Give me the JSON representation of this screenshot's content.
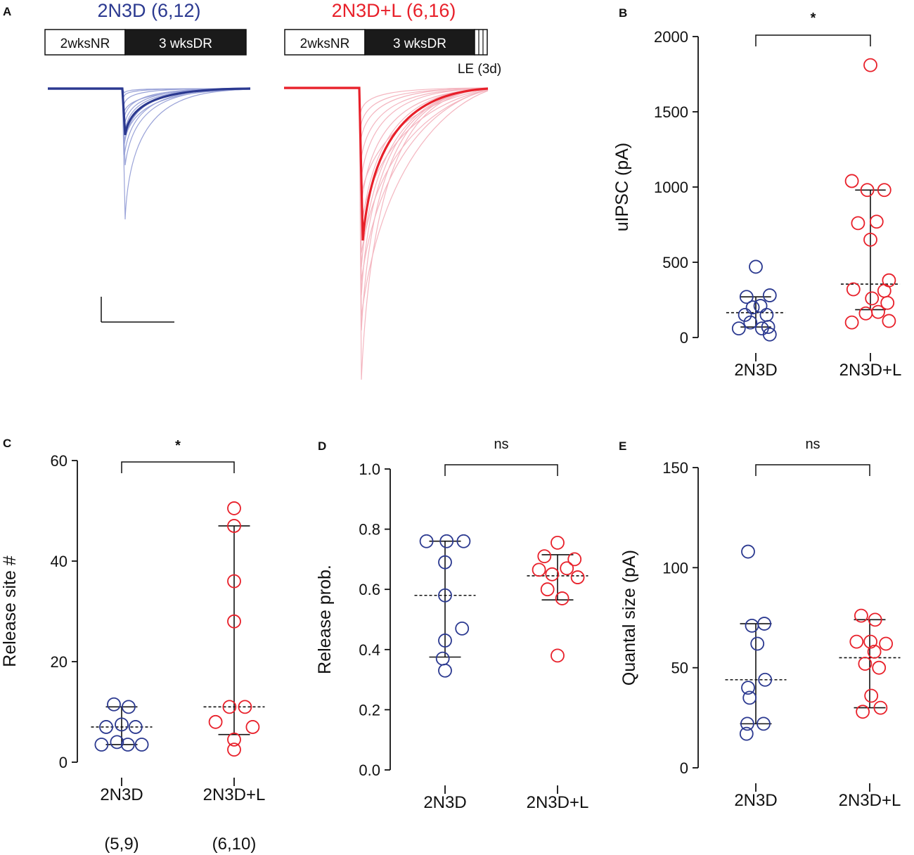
{
  "colors": {
    "blue": "#2b3990",
    "red": "#e8202a",
    "blue_light": "#9aa3d8",
    "red_light": "#f4b6c0",
    "black": "#111111"
  },
  "panelA": {
    "letter": "A",
    "left": {
      "title": "2N3D (6,12)",
      "timeline": [
        "2wksNR",
        "3 wksDR"
      ]
    },
    "right": {
      "title": "2N3D+L (6,16)",
      "timeline": [
        "2wksNR",
        "3 wksDR"
      ],
      "le_label": "LE (3d)"
    }
  },
  "chart_data": [
    {
      "id": "B",
      "letter": "B",
      "type": "scatter",
      "ylabel": "uIPSC (pA)",
      "ylim": [
        0,
        2000
      ],
      "yticks": [
        0,
        500,
        1000,
        1500,
        2000
      ],
      "categories": [
        "2N3D",
        "2N3D+L"
      ],
      "significance": "*",
      "series": [
        {
          "name": "2N3D",
          "color": "blue",
          "median": 165,
          "q1": 70,
          "q3": 270,
          "values": [
            470,
            270,
            280,
            200,
            210,
            150,
            150,
            100,
            60,
            60,
            70,
            20
          ],
          "offsets": [
            0,
            -0.6,
            0.9,
            -0.2,
            0.3,
            -0.7,
            0.7,
            -0.35,
            -1.1,
            0.4,
            0.8,
            0.9
          ]
        },
        {
          "name": "2N3D+L",
          "color": "red",
          "median": 355,
          "q1": 185,
          "q3": 980,
          "values": [
            1810,
            1040,
            980,
            980,
            770,
            760,
            650,
            380,
            320,
            260,
            310,
            230,
            160,
            170,
            100,
            110
          ],
          "offsets": [
            0,
            -1.2,
            -0.2,
            0.9,
            0.4,
            -0.8,
            0,
            1.2,
            -1.1,
            0.1,
            0.9,
            1.1,
            -0.3,
            0.5,
            -1.2,
            1.2
          ]
        }
      ]
    },
    {
      "id": "C",
      "letter": "C",
      "type": "scatter",
      "ylabel": "Release site #",
      "ylim": [
        0,
        60
      ],
      "yticks": [
        0,
        20,
        40,
        60
      ],
      "categories": [
        "2N3D",
        "2N3D+L"
      ],
      "significance": "*",
      "counts": [
        "(5,9)",
        "(6,10)"
      ],
      "series": [
        {
          "name": "2N3D",
          "color": "blue",
          "median": 7,
          "q1": 3.5,
          "q3": 11,
          "values": [
            11.5,
            11,
            7.5,
            7,
            7,
            4,
            3.5,
            3.5,
            3.5
          ],
          "offsets": [
            -0.5,
            0.45,
            0,
            -1,
            0.9,
            -0.3,
            -1.3,
            0.4,
            1.3
          ]
        },
        {
          "name": "2N3D+L",
          "color": "red",
          "median": 11,
          "q1": 5.5,
          "q3": 47,
          "values": [
            50.5,
            47,
            36,
            28,
            11,
            11,
            8,
            7,
            4.5,
            2.5
          ],
          "offsets": [
            0,
            0,
            0,
            0,
            -0.3,
            0.7,
            -1.2,
            1.2,
            0,
            0
          ]
        }
      ]
    },
    {
      "id": "D",
      "letter": "D",
      "type": "scatter",
      "ylabel": "Release prob.",
      "ylim": [
        0,
        1.0
      ],
      "yticks": [
        0.0,
        0.2,
        0.4,
        0.6,
        0.8,
        1.0
      ],
      "tick_labels": [
        "0.0",
        "0.2",
        "0.4",
        "0.6",
        "0.8",
        "1.0"
      ],
      "categories": [
        "2N3D",
        "2N3D+L"
      ],
      "significance": "ns",
      "series": [
        {
          "name": "2N3D",
          "color": "blue",
          "median": 0.58,
          "q1": 0.375,
          "q3": 0.76,
          "values": [
            0.76,
            0.76,
            0.76,
            0.69,
            0.58,
            0.47,
            0.43,
            0.37,
            0.33
          ],
          "offsets": [
            -1.2,
            0.1,
            1.2,
            0,
            0,
            1.1,
            0,
            -0.15,
            0
          ]
        },
        {
          "name": "2N3D+L",
          "color": "red",
          "median": 0.645,
          "q1": 0.565,
          "q3": 0.715,
          "values": [
            0.755,
            0.71,
            0.7,
            0.665,
            0.67,
            0.65,
            0.64,
            0.6,
            0.57,
            0.38
          ],
          "offsets": [
            0,
            -0.85,
            1.1,
            -1.2,
            0.6,
            -0.35,
            1.3,
            -0.65,
            0.3,
            0
          ]
        }
      ]
    },
    {
      "id": "E",
      "letter": "E",
      "type": "scatter",
      "ylabel": "Quantal size (pA)",
      "ylim": [
        0,
        150
      ],
      "yticks": [
        0,
        50,
        100,
        150
      ],
      "categories": [
        "2N3D",
        "2N3D+L"
      ],
      "significance": "ns",
      "series": [
        {
          "name": "2N3D",
          "color": "blue",
          "median": 44,
          "q1": 22,
          "q3": 72,
          "values": [
            108,
            72,
            71,
            62,
            44,
            40,
            35,
            22,
            22,
            17
          ],
          "offsets": [
            -0.5,
            0.55,
            -0.25,
            0.1,
            0.6,
            -0.5,
            -0.4,
            -0.55,
            0.5,
            -0.6
          ]
        },
        {
          "name": "2N3D+L",
          "color": "red",
          "median": 55,
          "q1": 30,
          "q3": 74,
          "values": [
            76,
            74,
            63,
            62,
            63,
            58,
            52,
            50,
            36,
            30,
            28
          ],
          "offsets": [
            -0.55,
            0.35,
            -0.85,
            1.05,
            0.05,
            0.3,
            -0.3,
            0.6,
            0.1,
            0.7,
            -0.45
          ]
        }
      ]
    }
  ]
}
